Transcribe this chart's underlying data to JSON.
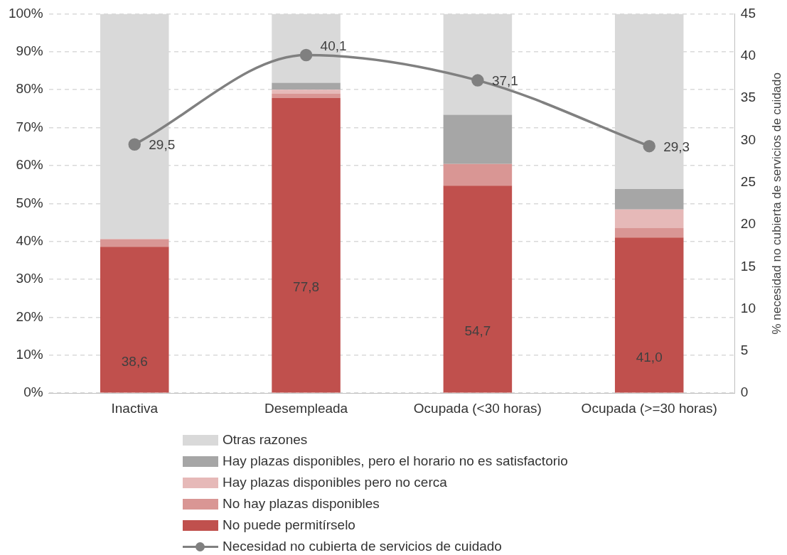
{
  "chart_data": {
    "type": "bar",
    "stacked": true,
    "categories": [
      "Inactiva",
      "Desempleada",
      "Ocupada (<30 horas)",
      "Ocupada (>=30 horas)"
    ],
    "y2label": "% necesidad no cubierta de servicios de cuidado",
    "series": [
      {
        "name": "No puede permitírselo",
        "color": "#c0504d",
        "values": [
          38.6,
          77.8,
          54.7,
          41.0
        ],
        "value_labels": [
          "38,6",
          "77,8",
          "54,7",
          "41,0"
        ]
      },
      {
        "name": "No hay plazas disponibles",
        "color": "#d99694",
        "values": [
          2.0,
          1.2,
          5.7,
          2.5
        ]
      },
      {
        "name": "Hay plazas disponibles pero no cerca",
        "color": "#e6b9b8",
        "values": [
          0,
          1.0,
          0,
          4.9
        ]
      },
      {
        "name": "Hay plazas disponibles, pero el horario no es satisfactorio",
        "color": "#a6a6a6",
        "values": [
          0,
          1.8,
          13.0,
          5.4
        ]
      },
      {
        "name": "Otras razones",
        "color": "#d9d9d9",
        "values": [
          59.4,
          18.2,
          26.6,
          46.2
        ]
      },
      {
        "name": "Necesidad no cubierta de servicios de cuidado",
        "type": "line",
        "axis": "y2",
        "color": "#808080",
        "marker": "circle",
        "values": [
          29.5,
          40.1,
          37.1,
          29.3
        ],
        "value_labels": [
          "29,5",
          "40,1",
          "37,1",
          "29,3"
        ]
      }
    ],
    "ylim": [
      0,
      100
    ],
    "yticks": [
      {
        "value": 0,
        "label": "0%"
      },
      {
        "value": 10,
        "label": "10%"
      },
      {
        "value": 20,
        "label": "20%"
      },
      {
        "value": 30,
        "label": "30%"
      },
      {
        "value": 40,
        "label": "40%"
      },
      {
        "value": 50,
        "label": "50%"
      },
      {
        "value": 60,
        "label": "60%"
      },
      {
        "value": 70,
        "label": "70%"
      },
      {
        "value": 80,
        "label": "80%"
      },
      {
        "value": 90,
        "label": "90%"
      },
      {
        "value": 100,
        "label": "100%"
      }
    ],
    "y2lim": [
      0,
      45
    ],
    "y2ticks": [
      0,
      5,
      10,
      15,
      20,
      25,
      30,
      35,
      40,
      45
    ],
    "grid": "y",
    "legend": "bottom"
  }
}
